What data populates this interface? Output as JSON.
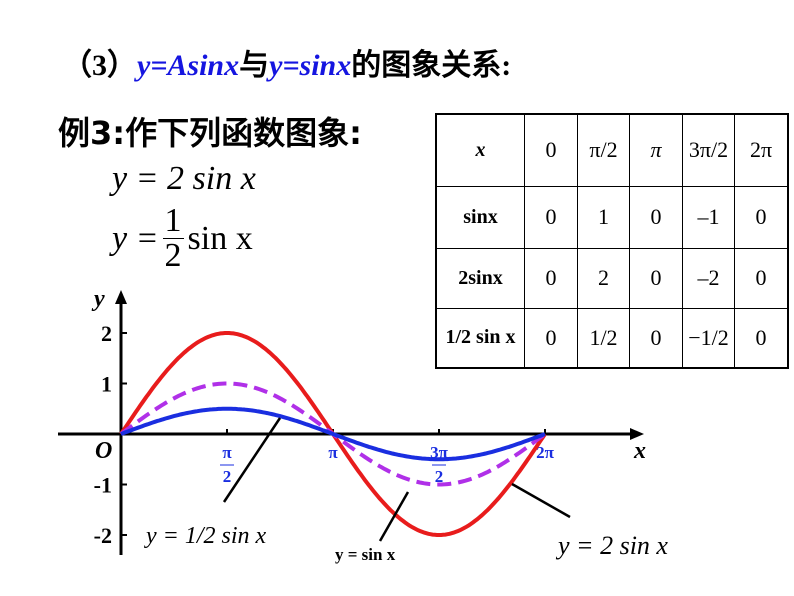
{
  "title": {
    "part1": "（3）",
    "part2": "y=Asinx",
    "part3": "与",
    "part4": "y=sinx",
    "part5": "的图象关系:"
  },
  "example": {
    "label": "例3:作下列函数图象:",
    "eq1": "y = 2 sin x",
    "eq2_lhs": "y =",
    "eq2_num": "1",
    "eq2_den": "2",
    "eq2_rhs": "sin x"
  },
  "table": {
    "headers": [
      "x",
      "0",
      "π/2",
      "π",
      "3π/2",
      "2π"
    ],
    "rows": [
      {
        "label": "sinx",
        "values": [
          "0",
          "1",
          "0",
          "–1",
          "0"
        ]
      },
      {
        "label": "2sinx",
        "values": [
          "0",
          "2",
          "0",
          "–2",
          "0"
        ]
      },
      {
        "label": "1/2 sin x",
        "values": [
          "0",
          "1/2",
          "0",
          "−1/2",
          "0"
        ]
      }
    ]
  },
  "chart_data": {
    "type": "line",
    "xlabel": "x",
    "ylabel": "y",
    "origin_label": "O",
    "xticks": [
      "π/2",
      "π",
      "3π/2",
      "2π"
    ],
    "yticks": [
      "2",
      "1",
      "-1",
      "-2"
    ],
    "xlim": [
      0,
      6.2832
    ],
    "ylim": [
      -2,
      2
    ],
    "series": [
      {
        "name": "y = 2 sin x",
        "amplitude": 2,
        "color": "#e81c1c",
        "style": "solid"
      },
      {
        "name": "y = sin x",
        "amplitude": 1,
        "color": "#b030e8",
        "style": "dashed"
      },
      {
        "name": "y = 1/2 sin x",
        "amplitude": 0.5,
        "color": "#1a2ee0",
        "style": "solid"
      }
    ],
    "labels": {
      "half": "y = 1/2 sin x",
      "one": "y = sin x",
      "two": "y = 2 sin x"
    }
  }
}
